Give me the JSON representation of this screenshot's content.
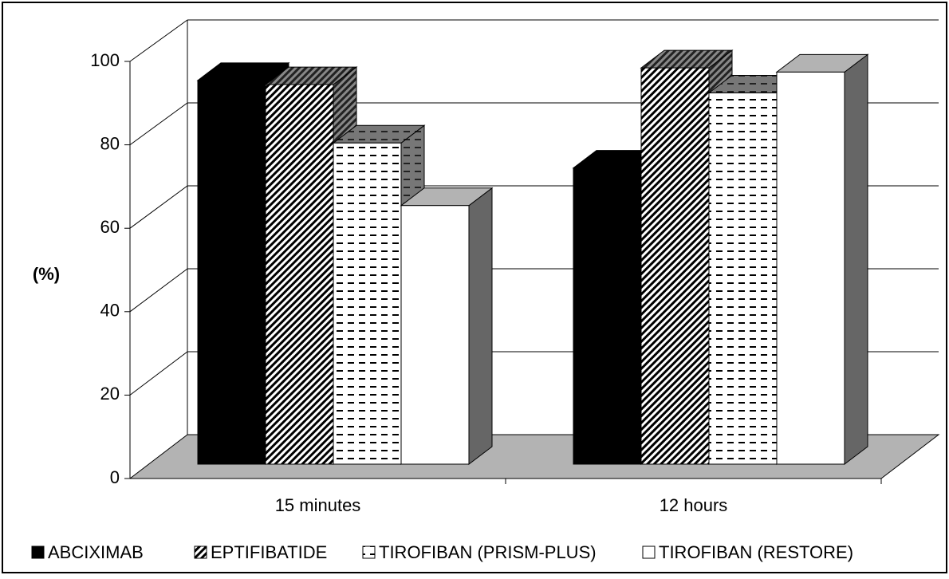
{
  "chart_data": {
    "type": "bar3d",
    "y_label": "(%)",
    "categories": [
      "15 minutes",
      "12 hours"
    ],
    "series": [
      {
        "name": "ABCIXIMAB",
        "color": "#000000",
        "values": [
          92,
          71
        ]
      },
      {
        "name": "EPTIFIBATIDE",
        "color": "#808080",
        "values": [
          91,
          95
        ]
      },
      {
        "name": "TIROFIBAN (PRISM-PLUS)",
        "color": "#ffffff",
        "values": [
          77,
          89
        ]
      },
      {
        "name": "TIROFIBAN (RESTORE)",
        "color": "#ffffff",
        "values": [
          62,
          94
        ]
      }
    ],
    "ylim": [
      0,
      100
    ],
    "yticks": [
      0,
      20,
      40,
      60,
      80,
      100
    ],
    "grid": true,
    "legend": "bottom"
  }
}
